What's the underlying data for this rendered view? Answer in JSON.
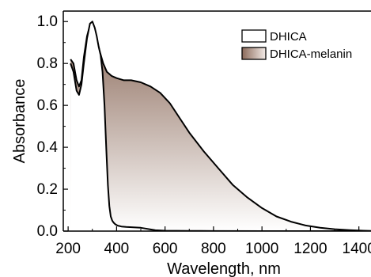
{
  "chart_data": {
    "type": "area",
    "xlabel": "Wavelength, nm",
    "ylabel": "Absorbance",
    "xlim": [
      180,
      1450
    ],
    "ylim": [
      0,
      1.05
    ],
    "xticks": [
      200,
      400,
      600,
      800,
      1000,
      1200,
      1400
    ],
    "yticks": [
      0.0,
      0.2,
      0.4,
      0.6,
      0.8,
      1.0
    ],
    "xtick_labels": [
      "200",
      "400",
      "600",
      "800",
      "1000",
      "1200",
      "1400"
    ],
    "ytick_labels": [
      "0.0",
      "0.2",
      "0.4",
      "0.6",
      "0.8",
      "1.0"
    ],
    "grid": false,
    "legend_position": "top-right",
    "series": [
      {
        "name": "DHICA-melanin",
        "fill_top": "#8b6a5a",
        "fill_bottom": "#ffffff",
        "x": [
          210,
          222,
          235,
          245,
          255,
          265,
          278,
          292,
          305,
          318,
          330,
          345,
          360,
          380,
          400,
          430,
          460,
          500,
          540,
          580,
          620,
          660,
          700,
          760,
          820,
          880,
          940,
          1000,
          1060,
          1120,
          1180,
          1240,
          1300,
          1360,
          1420,
          1450
        ],
        "y": [
          0.82,
          0.8,
          0.72,
          0.69,
          0.72,
          0.83,
          0.93,
          0.99,
          0.97,
          0.92,
          0.86,
          0.8,
          0.76,
          0.74,
          0.73,
          0.72,
          0.72,
          0.71,
          0.69,
          0.66,
          0.61,
          0.54,
          0.47,
          0.38,
          0.3,
          0.22,
          0.16,
          0.11,
          0.07,
          0.045,
          0.027,
          0.016,
          0.009,
          0.005,
          0.002,
          0.001
        ]
      },
      {
        "name": "DHICA",
        "fill_top": "#ffffff",
        "fill_bottom": "#ffffff",
        "x": [
          210,
          222,
          235,
          245,
          255,
          265,
          278,
          290,
          300,
          310,
          318,
          326,
          334,
          342,
          350,
          358,
          364,
          370,
          376,
          382,
          388,
          395,
          405,
          420,
          440,
          470,
          500,
          520,
          540,
          560,
          600,
          700,
          800,
          1000,
          1200,
          1450
        ],
        "y": [
          0.8,
          0.76,
          0.67,
          0.65,
          0.7,
          0.8,
          0.92,
          0.99,
          1.0,
          0.97,
          0.93,
          0.88,
          0.84,
          0.76,
          0.6,
          0.38,
          0.22,
          0.12,
          0.07,
          0.05,
          0.04,
          0.032,
          0.026,
          0.022,
          0.02,
          0.018,
          0.016,
          0.012,
          0.008,
          0.004,
          0.002,
          0.001,
          0.0005,
          0.0,
          0.0,
          0.0
        ]
      }
    ]
  }
}
